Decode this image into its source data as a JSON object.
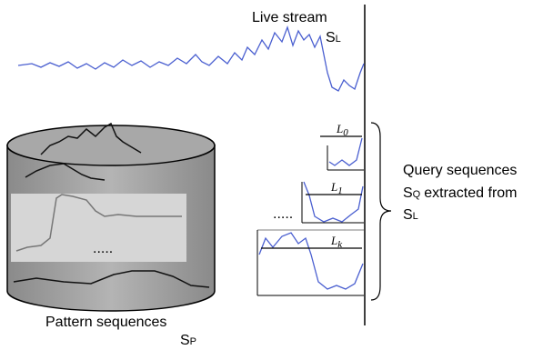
{
  "live_stream": {
    "label": "Live stream",
    "symbol": "S",
    "subscript": "L"
  },
  "query": {
    "label": "Query sequences",
    "symbol": "S",
    "subscript": "Q",
    "text": "extracted from",
    "source_symbol": "S",
    "source_subscript": "L"
  },
  "windows": [
    {
      "symbol": "L",
      "subscript": "0"
    },
    {
      "symbol": "L",
      "subscript": "1"
    },
    {
      "symbol": "L",
      "subscript": "k"
    }
  ],
  "window_ellipsis": ".....",
  "pattern": {
    "label": "Pattern sequences",
    "symbol": "S",
    "subscript": "P",
    "ellipsis": "....."
  }
}
